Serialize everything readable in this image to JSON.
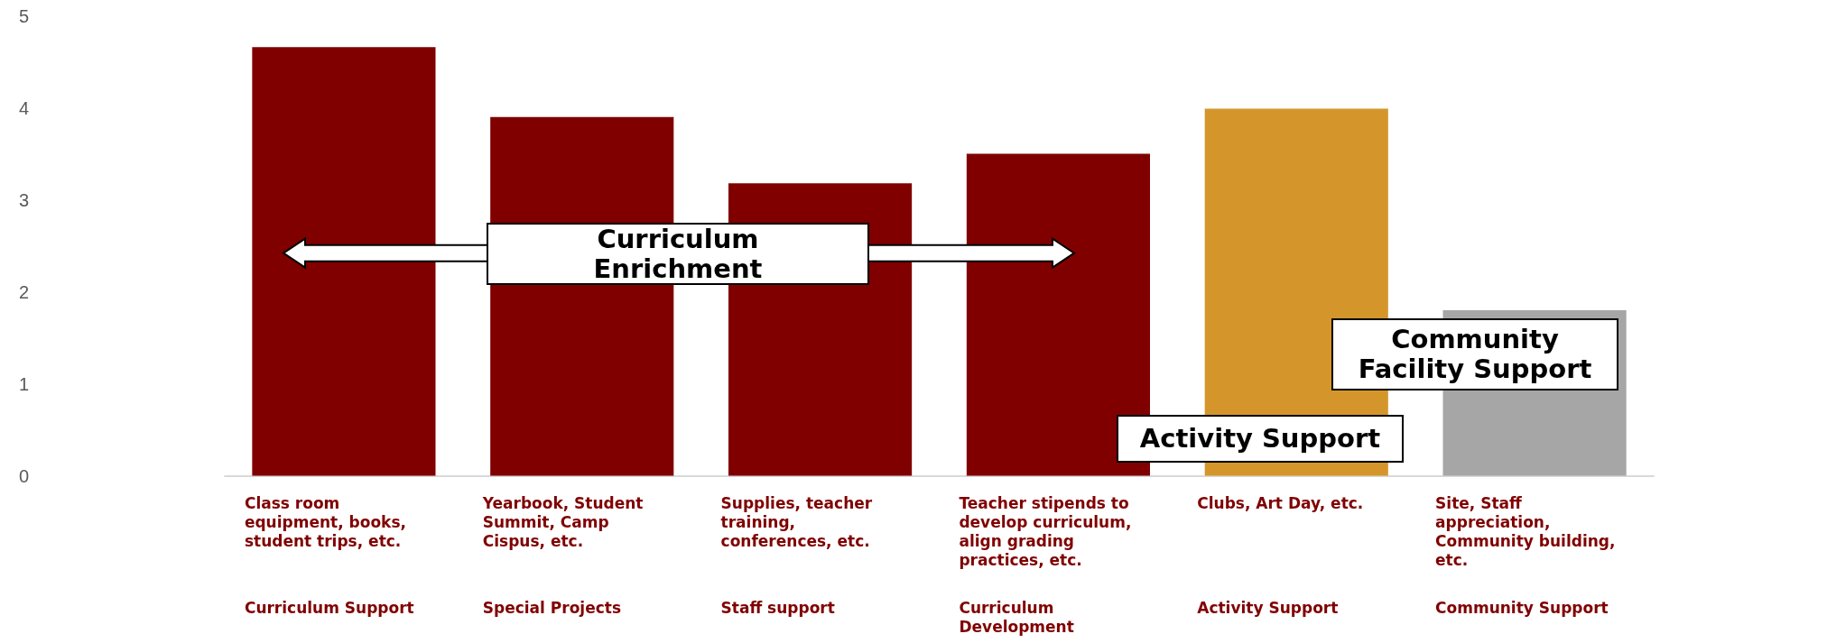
{
  "chart_data": {
    "type": "bar",
    "categories": [
      "Class room equipment, books, student trips, etc.",
      "Yearbook, Student Summit, Camp Cispus, etc.",
      "Supplies, teacher training, conferences, etc.",
      "Teacher stipends to develop curriculum, align grading practices, etc.",
      "Clubs, Art Day, etc.",
      "Site, Staff appreciation, Community building, etc."
    ],
    "values": [
      4.66,
      3.9,
      3.18,
      3.5,
      3.99,
      1.8
    ],
    "colors": [
      "#800000",
      "#800000",
      "#800000",
      "#800000",
      "#d4962b",
      "#a6a6a6"
    ],
    "ylim": [
      0,
      5
    ],
    "yticks": [
      0,
      1,
      2,
      3,
      4,
      5
    ],
    "grid": false,
    "annotations": [
      "Curriculum Enrichment",
      "Activity Support",
      "Community Facility Support",
      "Curriculum Support",
      "Special Projects",
      "Staff support",
      "Curriculum Development",
      "Activity Support",
      "Community Support"
    ]
  }
}
